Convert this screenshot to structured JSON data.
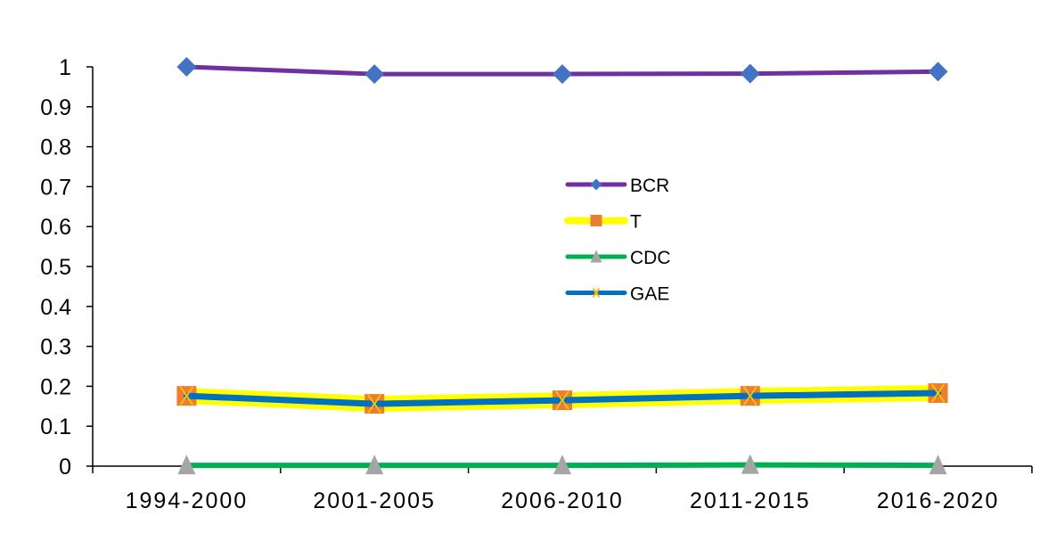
{
  "chart_data": {
    "type": "line",
    "title": "",
    "xlabel": "",
    "ylabel": "",
    "categories": [
      "1994-2000",
      "2001-2005",
      "2006-2010",
      "2011-2015",
      "2016-2020"
    ],
    "ylim": [
      0,
      1
    ],
    "yticks": [
      "0",
      "0.1",
      "0.2",
      "0.3",
      "0.4",
      "0.5",
      "0.6",
      "0.7",
      "0.8",
      "0.9",
      "1"
    ],
    "grid": false,
    "legend_position": "center",
    "series": [
      {
        "name": "BCR",
        "values": [
          1.0,
          0.982,
          0.982,
          0.983,
          0.988
        ],
        "line_color": "#7030A0",
        "marker": "diamond",
        "marker_color": "#4472C4"
      },
      {
        "name": "T",
        "values": [
          0.176,
          0.156,
          0.165,
          0.176,
          0.183
        ],
        "line_color": "#FFFF00",
        "marker": "square",
        "marker_color": "#ED7D31"
      },
      {
        "name": "CDC",
        "values": [
          0.002,
          0.002,
          0.002,
          0.003,
          0.002
        ],
        "line_color": "#00B050",
        "marker": "triangle",
        "marker_color": "#A5A5A5"
      },
      {
        "name": "GAE",
        "values": [
          0.176,
          0.156,
          0.165,
          0.176,
          0.183
        ],
        "line_color": "#0070C0",
        "marker": "x",
        "marker_color": "#FFC000"
      }
    ]
  }
}
